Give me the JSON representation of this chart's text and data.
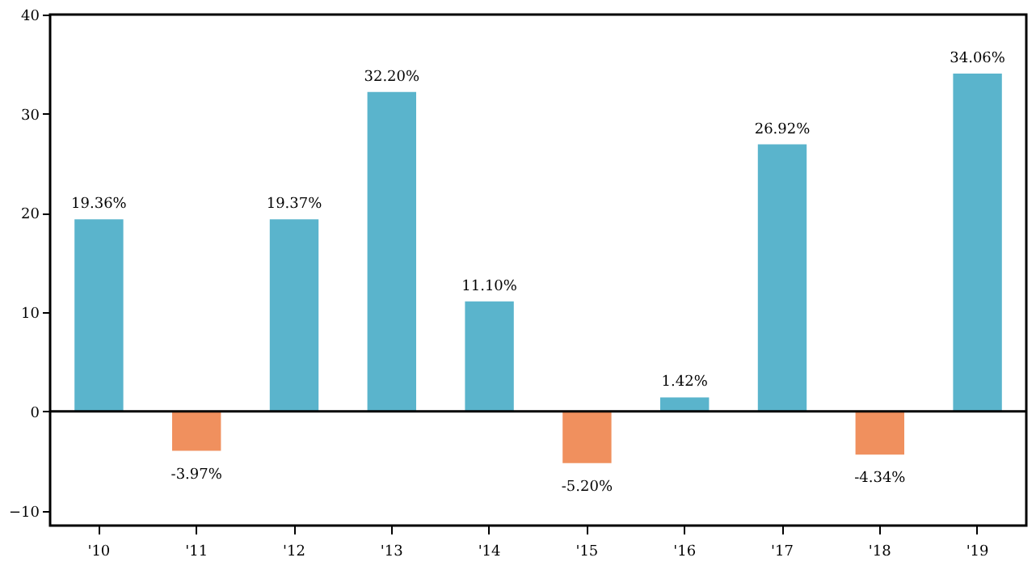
{
  "chart_data": {
    "type": "bar",
    "categories": [
      "'10",
      "'11",
      "'12",
      "'13",
      "'14",
      "'15",
      "'16",
      "'17",
      "'18",
      "'19"
    ],
    "values": [
      19.36,
      -3.97,
      19.37,
      32.2,
      11.1,
      -5.2,
      1.42,
      26.92,
      -4.34,
      34.06
    ],
    "value_labels": [
      "19.36%",
      "-3.97%",
      "19.37%",
      "32.20%",
      "11.10%",
      "-5.20%",
      "1.42%",
      "26.92%",
      "-4.34%",
      "34.06%"
    ],
    "colors": [
      "#5ab4cc",
      "#f0905e",
      "#5ab4cc",
      "#5ab4cc",
      "#5ab4cc",
      "#f0905e",
      "#5ab4cc",
      "#5ab4cc",
      "#f0905e",
      "#5ab4cc"
    ],
    "ylim": [
      -11.5,
      40
    ],
    "yticks": [
      -10,
      0,
      10,
      20,
      30,
      40
    ],
    "ref_lines": [
      {
        "axis": "y",
        "value": 0,
        "color": "#000000"
      }
    ],
    "grid": false
  }
}
